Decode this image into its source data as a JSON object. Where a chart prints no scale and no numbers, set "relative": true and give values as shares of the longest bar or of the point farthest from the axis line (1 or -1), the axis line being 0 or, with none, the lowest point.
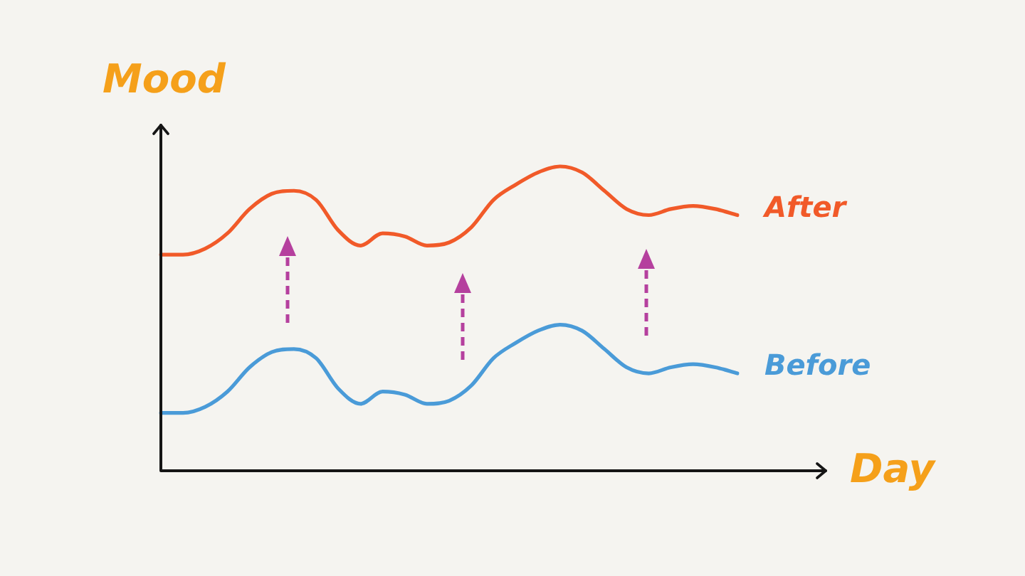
{
  "chart_data": {
    "type": "line",
    "relative": true,
    "xlabel": "Day",
    "ylabel": "Mood",
    "categories": [
      null,
      null,
      null,
      null,
      null,
      null,
      null,
      null,
      null,
      null,
      null,
      null,
      null,
      null,
      null,
      null,
      null,
      null,
      null,
      null,
      null,
      null,
      null,
      null,
      null,
      null,
      null
    ],
    "series": [
      {
        "name": "After",
        "color": "#f15a29",
        "values": [
          0.71,
          0.71,
          0.73,
          0.78,
          0.86,
          0.91,
          0.92,
          0.89,
          0.79,
          0.74,
          0.78,
          0.77,
          0.74,
          0.75,
          0.8,
          0.89,
          0.94,
          0.98,
          1.0,
          0.98,
          0.92,
          0.86,
          0.84,
          0.86,
          0.87,
          0.86,
          0.84
        ]
      },
      {
        "name": "Before",
        "color": "#4a9bd8",
        "values": [
          0.19,
          0.19,
          0.21,
          0.26,
          0.34,
          0.39,
          0.4,
          0.37,
          0.27,
          0.22,
          0.26,
          0.25,
          0.22,
          0.23,
          0.28,
          0.37,
          0.42,
          0.46,
          0.48,
          0.46,
          0.4,
          0.34,
          0.32,
          0.34,
          0.35,
          0.34,
          0.32
        ]
      }
    ],
    "legend": false,
    "grid": false,
    "tick_labels": false,
    "marker": "none"
  }
}
